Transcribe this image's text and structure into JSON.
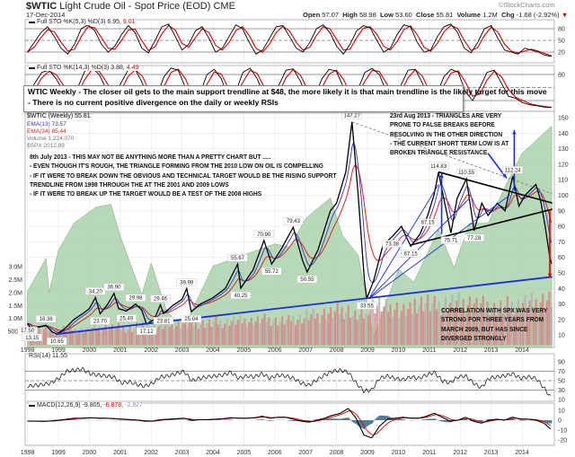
{
  "header": {
    "symbol": "$WTIC",
    "name": "Light Crude Oil - Spot Price (EOD)",
    "exchange": "CME",
    "date": "17-Dec-2014",
    "watermark": "©StockCharts.com",
    "open_label": "Open",
    "open": "57.07",
    "high_label": "High",
    "high": "58.98",
    "low_label": "Low",
    "low": "53.60",
    "close_label": "Close",
    "close": "55.81",
    "volume_label": "Volume",
    "volume": "1.2M",
    "chg_label": "Chg",
    "chg": "-1.68 (-2.92%)"
  },
  "colors": {
    "price": "#000000",
    "down_bar": "#cc0000",
    "ema13": "#3333cc",
    "ema34": "#dd2222",
    "spx_area": "#9fcc9f",
    "volume_up": "#b0b0b0",
    "volume_down": "#d88080",
    "trend_blue": "#1a2fd6",
    "trend_black": "#000000",
    "macd_hist": "#4a7891"
  },
  "note": {
    "line1": "WTIC Weekly - The closer oil gets to the main support trendline at $48, the more likely it is that main trendline is the likely target for this move",
    "line2": "- There is no current positive divergence on the daily or weekly RSIs"
  },
  "legend": {
    "main": "$WTIC (Weekly) 55.81",
    "ema13": "EMA(13) 73.57",
    "ema34": "EMA(34) 85.44",
    "volume": "Volume 1,224,070",
    "spx": "$SPX 2012.89"
  },
  "annotations": {
    "july": [
      "8th July 2013 - THIS MAY NOT BE ANYTHING MORE THAN A PRETTY CHART BUT .....",
      "- EVEN THOUGH IT'S ROUGH, THE TRIANGLE FORMING FROM THE 2010 LOW ON OIL IS COMPELLING",
      "- IF IT WERE TO BREAK DOWN THE OBVIOUS AND TECHNICAL TARGET WOULD BE THE RISING SUPPORT",
      "TRENDLINE FROM 1998 THROUGH THE AT THE 2001 AND 2009 LOWS",
      "- IF IT WERE TO BREAK UP THE TARGET WOULD BE A TEST OF THE 2008 HIGHS"
    ],
    "aug": [
      "23rd Aug 2013 - TRIANGLES ARE VERY",
      "PRONE TO FALSE BREAKS BEFORE",
      "RESOLVING IN THE OTHER DIRECTION",
      "- THE CURRENT SHORT TERM LOW IS AT",
      "BROKEN TRIANGLE RESISTANCE"
    ],
    "spx": [
      "CORRELATION WITH SPX WAS VERY",
      "STRONG FOR THREE YEARS FROM",
      "MARCH 2009, BUT HAS SINCE",
      "DIVERGED STRONGLY"
    ]
  },
  "chart_data": [
    {
      "type": "line",
      "title": "Full STO %K(5,3) %D(3) 6.95, 9.01",
      "label": "Full STO %K(5,3) %D(3) 6.95,",
      "value_d": "9.01",
      "yticks": [
        "80",
        "50",
        "20"
      ],
      "ylim": [
        0,
        100
      ],
      "values": [
        20,
        45,
        70,
        85,
        60,
        30,
        15,
        40,
        80,
        90,
        75,
        40,
        20,
        35,
        65,
        88,
        70,
        30,
        18,
        50,
        85,
        92,
        60,
        25,
        40,
        75,
        85,
        55,
        20,
        30,
        60,
        90,
        80,
        45,
        15,
        25,
        55,
        85,
        88,
        60,
        30,
        20,
        45,
        80,
        90,
        70,
        35,
        15,
        40,
        75,
        88,
        82,
        50,
        20,
        30,
        65,
        90,
        85,
        45,
        20,
        25,
        60,
        85,
        92,
        70,
        30,
        18,
        45,
        80,
        88,
        55,
        25,
        20,
        15,
        30,
        25,
        20,
        12,
        9
      ]
    },
    {
      "type": "line",
      "title": "Full STO %K(14,3) %D(3) 3.88, 4.49",
      "label": "Full STO %K(14,3) %D(3) 3.88,",
      "value_d": "4.49",
      "yticks": [
        "80"
      ],
      "ylim": [
        0,
        100
      ],
      "values": [
        30,
        60,
        85,
        90,
        70,
        40,
        20,
        50,
        88,
        95,
        80,
        45,
        25,
        60,
        90,
        92,
        60,
        20,
        30,
        75,
        95,
        90,
        50,
        15,
        35,
        80,
        92,
        70,
        25,
        40,
        85,
        95,
        70,
        30,
        20,
        55,
        90,
        93,
        65,
        25,
        30,
        70,
        92,
        88,
        50,
        20,
        45,
        85,
        94,
        80,
        40,
        25,
        55,
        90,
        92,
        60,
        20,
        35,
        75,
        92,
        85,
        40,
        20,
        50,
        85,
        90,
        60,
        30,
        25,
        15,
        10,
        8,
        5,
        4
      ]
    },
    {
      "type": "line",
      "title": "$WTIC (Weekly) 55.81",
      "ylim": [
        0,
        155
      ],
      "yticks": [
        10,
        20,
        30,
        40,
        50,
        60,
        70,
        80,
        90,
        100,
        110,
        120,
        130,
        140,
        150
      ],
      "xticks": [
        "1998",
        "1999",
        "2000",
        "2001",
        "2002",
        "2003",
        "2004",
        "2005",
        "2006",
        "2007",
        "2008",
        "2009",
        "2010",
        "2011",
        "2012",
        "2013",
        "2014"
      ],
      "price": [
        [
          1998.0,
          17.5
        ],
        [
          1998.15,
          13.15
        ],
        [
          1998.3,
          15
        ],
        [
          1998.6,
          16.36
        ],
        [
          1998.8,
          12
        ],
        [
          1998.95,
          10.65
        ],
        [
          1999.2,
          14
        ],
        [
          1999.5,
          20
        ],
        [
          1999.8,
          24
        ],
        [
          2000.0,
          27
        ],
        [
          2000.2,
          34.2
        ],
        [
          2000.35,
          23.7
        ],
        [
          2000.6,
          30
        ],
        [
          2000.8,
          36.9
        ],
        [
          2000.95,
          27
        ],
        [
          2001.2,
          25.49
        ],
        [
          2001.5,
          29.98
        ],
        [
          2001.7,
          26
        ],
        [
          2001.85,
          17.12
        ],
        [
          2002.1,
          20
        ],
        [
          2002.3,
          29.46
        ],
        [
          2002.4,
          23.81
        ],
        [
          2002.7,
          29
        ],
        [
          2003.0,
          33
        ],
        [
          2003.15,
          39.99
        ],
        [
          2003.3,
          25.04
        ],
        [
          2003.6,
          30
        ],
        [
          2004.0,
          34
        ],
        [
          2004.4,
          40
        ],
        [
          2004.8,
          55.67
        ],
        [
          2004.9,
          40.25
        ],
        [
          2005.3,
          52
        ],
        [
          2005.65,
          70.9
        ],
        [
          2005.9,
          55.72
        ],
        [
          2006.2,
          65
        ],
        [
          2006.6,
          79.43
        ],
        [
          2006.9,
          58
        ],
        [
          2007.05,
          50.55
        ],
        [
          2007.4,
          65
        ],
        [
          2007.8,
          90
        ],
        [
          2008.0,
          95
        ],
        [
          2008.3,
          115
        ],
        [
          2008.5,
          147.27
        ],
        [
          2008.7,
          100
        ],
        [
          2008.9,
          45
        ],
        [
          2008.98,
          33.55
        ],
        [
          2009.2,
          45
        ],
        [
          2009.5,
          68
        ],
        [
          2009.8,
          73.38
        ],
        [
          2010.1,
          80
        ],
        [
          2010.4,
          67.15
        ],
        [
          2010.7,
          75
        ],
        [
          2010.95,
          87.15
        ],
        [
          2011.15,
          100
        ],
        [
          2011.3,
          114.83
        ],
        [
          2011.5,
          95
        ],
        [
          2011.7,
          75.71
        ],
        [
          2011.9,
          98
        ],
        [
          2012.2,
          110.55
        ],
        [
          2012.45,
          77.28
        ],
        [
          2012.7,
          95
        ],
        [
          2012.9,
          87
        ],
        [
          2013.2,
          95
        ],
        [
          2013.45,
          90
        ],
        [
          2013.7,
          112.24
        ],
        [
          2013.9,
          93
        ],
        [
          2014.1,
          100
        ],
        [
          2014.45,
          107
        ],
        [
          2014.6,
          97
        ],
        [
          2014.75,
          80
        ],
        [
          2014.9,
          60
        ],
        [
          2014.96,
          55.81
        ]
      ],
      "price_labels": [
        [
          1998.0,
          17.5,
          "17.50"
        ],
        [
          1998.15,
          13.15,
          "13.15"
        ],
        [
          1998.6,
          16.36,
          "16.36"
        ],
        [
          1998.95,
          10.65,
          "10.65"
        ],
        [
          2000.2,
          34.2,
          "34.20"
        ],
        [
          2000.35,
          23.7,
          "23.70"
        ],
        [
          2000.8,
          36.9,
          "36.90"
        ],
        [
          2001.2,
          25.49,
          "25.49"
        ],
        [
          2001.5,
          29.98,
          "29.98"
        ],
        [
          2001.85,
          17.12,
          "17.12"
        ],
        [
          2002.3,
          29.46,
          "29.46"
        ],
        [
          2002.4,
          23.81,
          "23.81"
        ],
        [
          2003.15,
          39.99,
          "39.99"
        ],
        [
          2003.3,
          25.04,
          "25.04"
        ],
        [
          2004.8,
          55.67,
          "55.67"
        ],
        [
          2004.9,
          40.25,
          "40.25"
        ],
        [
          2005.65,
          70.9,
          "70.90"
        ],
        [
          2005.9,
          55.72,
          "55.72"
        ],
        [
          2006.6,
          79.43,
          "79.43"
        ],
        [
          2007.05,
          50.55,
          "50.55"
        ],
        [
          2008.5,
          147.27,
          "147.27"
        ],
        [
          2008.98,
          33.55,
          "33.55"
        ],
        [
          2009.8,
          73.38,
          "73.38"
        ],
        [
          2010.4,
          67.15,
          "67.15"
        ],
        [
          2010.95,
          87.15,
          "87.15"
        ],
        [
          2011.3,
          114.83,
          "114.83"
        ],
        [
          2011.7,
          75.71,
          "75.71"
        ],
        [
          2012.2,
          110.55,
          "110.55"
        ],
        [
          2012.45,
          77.28,
          "77.28"
        ],
        [
          2013.7,
          112.24,
          "112.24"
        ]
      ],
      "spx": [
        [
          1998.0,
          970
        ],
        [
          1998.6,
          1180
        ],
        [
          1998.7,
          960
        ],
        [
          1999.0,
          1230
        ],
        [
          1999.5,
          1400
        ],
        [
          2000.2,
          1500
        ],
        [
          2000.7,
          1520
        ],
        [
          2001.0,
          1320
        ],
        [
          2001.7,
          950
        ],
        [
          2002.0,
          1150
        ],
        [
          2002.5,
          850
        ],
        [
          2002.8,
          780
        ],
        [
          2003.2,
          800
        ],
        [
          2004.0,
          1130
        ],
        [
          2005.0,
          1200
        ],
        [
          2006.0,
          1270
        ],
        [
          2006.5,
          1250
        ],
        [
          2007.0,
          1430
        ],
        [
          2007.8,
          1560
        ],
        [
          2008.2,
          1320
        ],
        [
          2008.7,
          1200
        ],
        [
          2009.2,
          680
        ],
        [
          2010.0,
          1110
        ],
        [
          2010.5,
          1030
        ],
        [
          2011.3,
          1360
        ],
        [
          2011.8,
          1120
        ],
        [
          2012.3,
          1400
        ],
        [
          2012.9,
          1400
        ],
        [
          2013.5,
          1650
        ],
        [
          2014.0,
          1840
        ],
        [
          2014.96,
          2012.89
        ]
      ],
      "volume_ticks": [
        "3.0M",
        "2.5M",
        "2.0M",
        "1.5M",
        "1.0M",
        "500K"
      ],
      "volume_m": [
        0.5,
        0.55,
        0.6,
        0.55,
        0.6,
        0.65,
        0.6,
        0.7,
        0.7,
        0.75,
        0.8,
        0.8,
        0.85,
        0.9,
        0.9,
        0.95,
        0.9,
        1.0,
        1.1,
        1.2,
        1.3,
        1.1,
        1.5,
        1.4,
        1.3,
        1.6,
        1.5,
        1.6,
        1.6,
        1.5,
        1.4,
        1.5,
        1.6,
        1.7
      ],
      "trendlines": [
        {
          "color": "blue",
          "from": [
            1998.95,
            10.65
          ],
          "to": [
            2014.98,
            47.5
          ]
        },
        {
          "color": "blue",
          "from": [
            2009.05,
            33.55
          ],
          "to": [
            2011.3,
            107
          ]
        },
        {
          "color": "blue",
          "from": [
            2009.05,
            33.55
          ],
          "to": [
            2012.3,
            98
          ]
        },
        {
          "color": "blue",
          "from": [
            2009.05,
            33.55
          ],
          "to": [
            2013.6,
            100
          ]
        },
        {
          "color": "black",
          "from": [
            2011.3,
            115
          ],
          "to": [
            2014.98,
            95
          ]
        },
        {
          "color": "black",
          "from": [
            2010.4,
            68
          ],
          "to": [
            2014.98,
            91
          ]
        },
        {
          "color": "gray-dashed",
          "from": [
            2008.5,
            147.27
          ],
          "to": [
            2014.98,
            101
          ]
        }
      ],
      "arrows": [
        {
          "color": "blue",
          "from": [
            2011.4,
            75
          ],
          "to": [
            2011.4,
            114
          ]
        },
        {
          "color": "blue",
          "from": [
            2013.75,
            103
          ],
          "to": [
            2013.75,
            142
          ]
        },
        {
          "color": "blue",
          "from": [
            2012.9,
            127
          ],
          "to": [
            2013.5,
            111
          ]
        },
        {
          "color": "red",
          "from": [
            2014.9,
            91
          ],
          "to": [
            2014.9,
            47
          ]
        }
      ]
    },
    {
      "type": "line",
      "title": "RSI(14) 11.55",
      "label": "RSI(14) 11.55",
      "ylim": [
        0,
        100
      ],
      "yticks": [
        "90",
        "70",
        "50",
        "30",
        "10"
      ],
      "x_step": "quarter",
      "start": 1998,
      "values": [
        38,
        40,
        42,
        45,
        55,
        70,
        72,
        75,
        65,
        62,
        60,
        58,
        45,
        48,
        42,
        38,
        45,
        58,
        60,
        65,
        70,
        50,
        55,
        58,
        60,
        62,
        68,
        55,
        60,
        58,
        65,
        55,
        62,
        60,
        55,
        45,
        40,
        52,
        62,
        70,
        72,
        68,
        45,
        28,
        30,
        55,
        60,
        55,
        52,
        58,
        55,
        62,
        68,
        50,
        45,
        58,
        60,
        45,
        35,
        55,
        58,
        60,
        65,
        55,
        58,
        55,
        35,
        11.55
      ]
    },
    {
      "type": "line",
      "title": "MACD(12,26,9) -9.805, -6.878, -2.927",
      "label": "MACD(12,26,9) -9.805,",
      "signal": "-6.878,",
      "hist": "-2.927",
      "ylim": [
        -22,
        13
      ],
      "yticks": [
        "10",
        "0",
        "-10",
        "-20"
      ],
      "x_step": "quarter",
      "start": 1998,
      "values": [
        -1,
        -1,
        -1.2,
        -0.8,
        0,
        1,
        2,
        2,
        2.5,
        2,
        2,
        1.5,
        1,
        0.5,
        0,
        -1,
        -1,
        0.5,
        1,
        1.5,
        2,
        0,
        0.5,
        0.5,
        1,
        1.5,
        2.5,
        2,
        2,
        2.5,
        4,
        2,
        3,
        3,
        1,
        -1,
        -2,
        0,
        2,
        5,
        7,
        12,
        2,
        -15,
        -18,
        -6,
        1,
        2,
        3,
        2,
        2,
        4,
        7,
        3,
        -1,
        0,
        3,
        -1,
        -3,
        0,
        1,
        0,
        3,
        1,
        1,
        0,
        -3,
        -9.805
      ]
    }
  ]
}
